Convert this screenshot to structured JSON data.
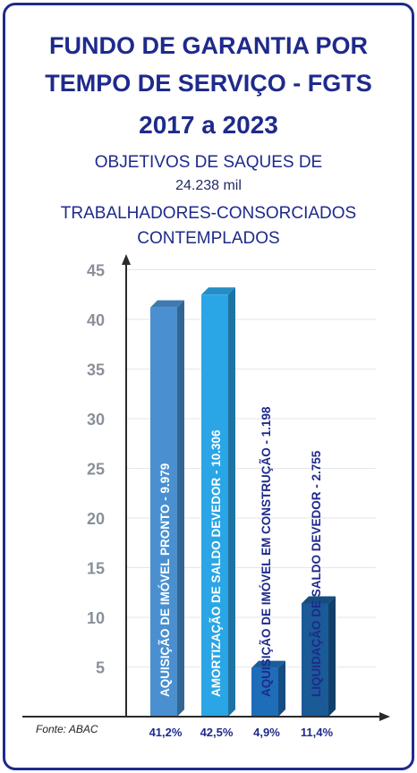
{
  "title": {
    "line1": "FUNDO DE GARANTIA POR",
    "line2": "TEMPO DE SERVIÇO - FGTS",
    "line3": "2017 a 2023"
  },
  "subtitle": {
    "line1": "OBJETIVOS DE SAQUES DE",
    "line2": "24.238 mil",
    "line3": "TRABALHADORES-CONSORCIADOS",
    "line4": "CONTEMPLADOS"
  },
  "source": "Fonte: ABAC",
  "colors": {
    "frame": "#1e2a8c",
    "text": "#1e2a8c"
  },
  "chart_data": {
    "type": "bar",
    "ylim": [
      0,
      45
    ],
    "yticks": [
      5,
      10,
      15,
      20,
      25,
      30,
      35,
      40,
      45
    ],
    "categories": [
      "AQUISIÇÃO DE IMÓVEL PRONTO - 9.979",
      "AMORTIZAÇÃO DE SALDO DEVEDOR - 10.306",
      "AQUISIÇÃO DE IMÓVEL EM CONSTRUÇÃO - 1.198",
      "LIQUIDAÇÃO DE SALDO DEVEDOR - 2.755"
    ],
    "values": [
      41.2,
      42.5,
      4.9,
      11.4
    ],
    "value_labels": [
      "41,2%",
      "42,5%",
      "4,9%",
      "11,4%"
    ],
    "bar_colors": [
      "#4a90d0",
      "#2aa6e6",
      "#1e6db8",
      "#1a5a96"
    ],
    "label_colors": [
      "#ffffff",
      "#ffffff",
      "#1e2a8c",
      "#1e2a8c"
    ],
    "grid": true
  }
}
